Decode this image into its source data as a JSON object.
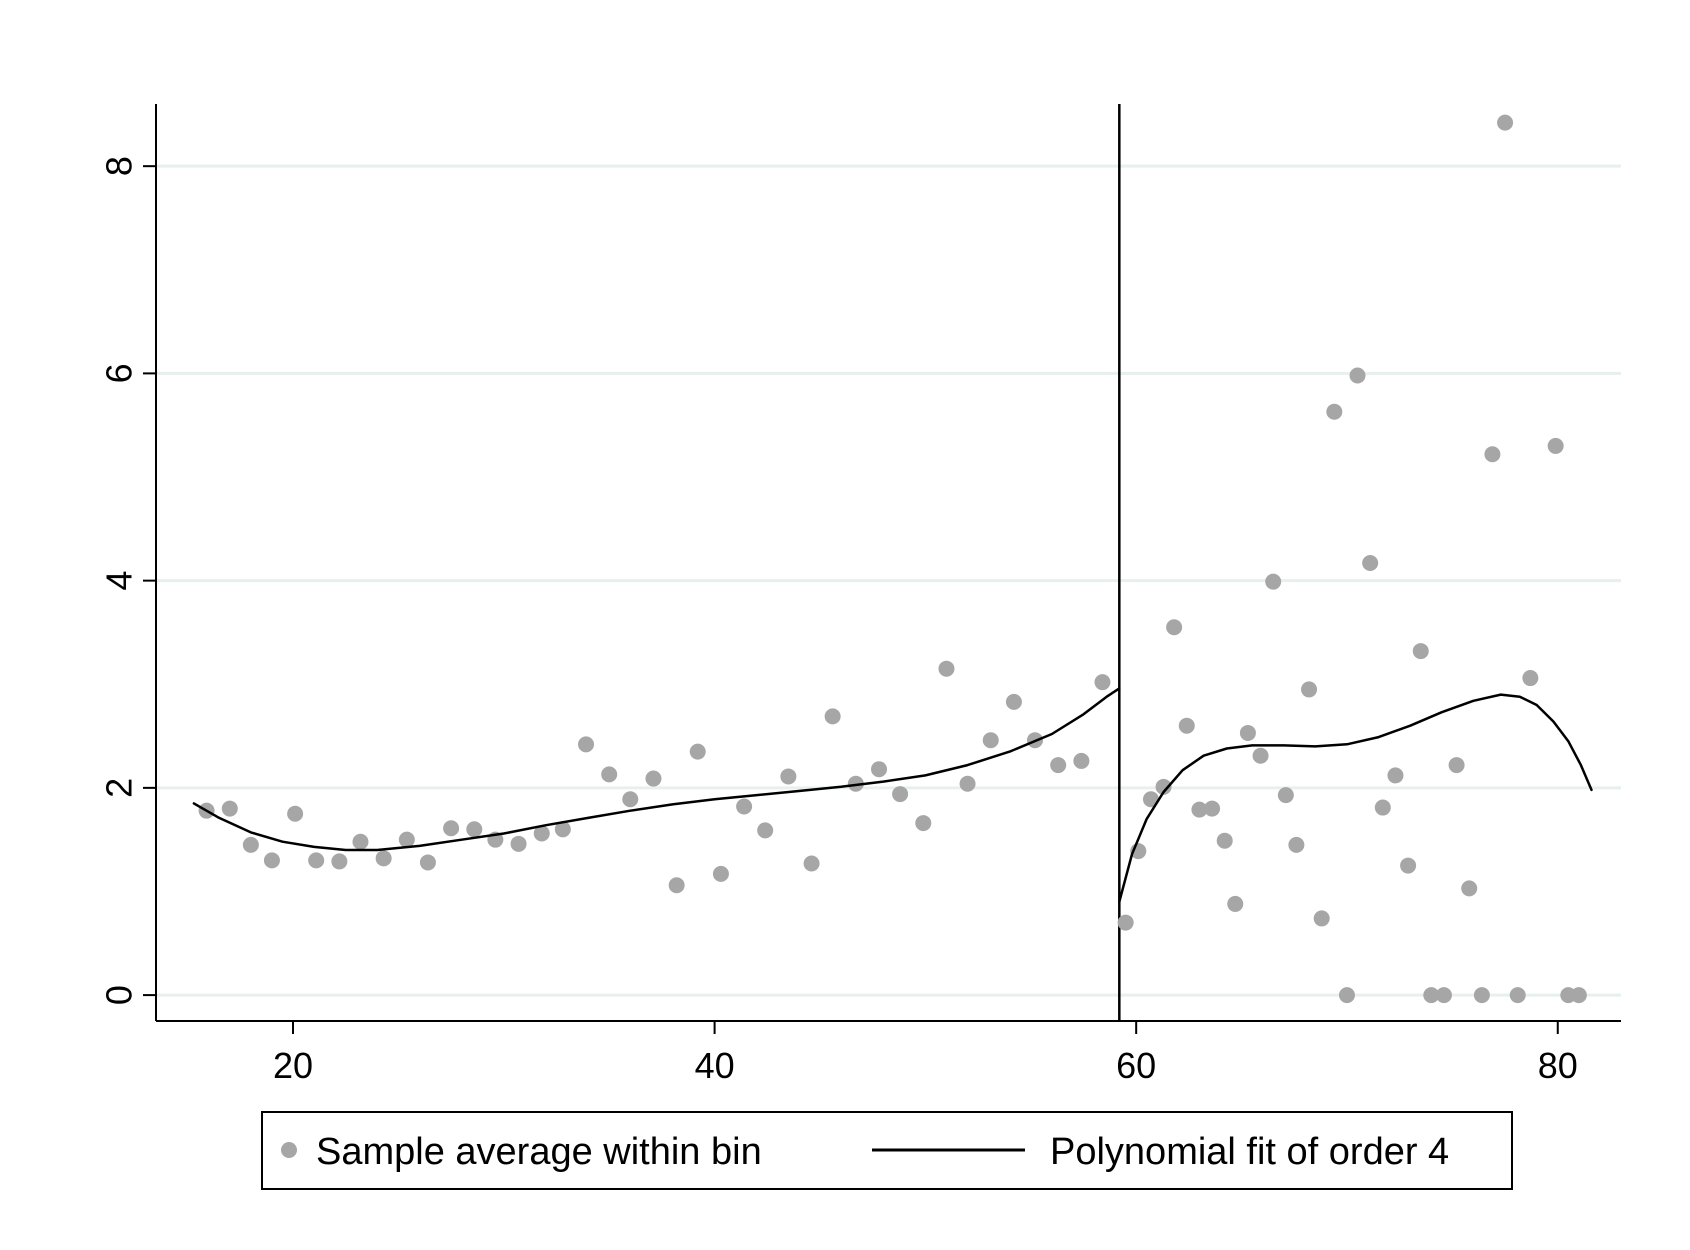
{
  "chart_data": {
    "type": "scatter",
    "title": "",
    "xlabel": "",
    "ylabel": "",
    "xlim": [
      13.5,
      83
    ],
    "ylim": [
      -0.25,
      8.6
    ],
    "x_ticks": [
      20,
      40,
      60,
      80
    ],
    "y_ticks": [
      0,
      2,
      4,
      6,
      8
    ],
    "x_tick_labels": [
      "20",
      "40",
      "60",
      "80"
    ],
    "y_tick_labels": [
      "0",
      "2",
      "4",
      "6",
      "8"
    ],
    "grid": true,
    "cutoff": 59.2,
    "legend_position": "bottom",
    "colors": {
      "points": "#a6a6a6",
      "fit": "#000000",
      "grid": "#e8efef",
      "axis": "#000000"
    },
    "series": [
      {
        "name": "Sample average within bin",
        "kind": "scatter",
        "points": [
          [
            15.9,
            1.78
          ],
          [
            17,
            1.8
          ],
          [
            18,
            1.45
          ],
          [
            19,
            1.3
          ],
          [
            20.1,
            1.75
          ],
          [
            21.1,
            1.3
          ],
          [
            22.2,
            1.29
          ],
          [
            23.2,
            1.48
          ],
          [
            24.3,
            1.32
          ],
          [
            25.4,
            1.5
          ],
          [
            26.4,
            1.28
          ],
          [
            27.5,
            1.61
          ],
          [
            28.6,
            1.6
          ],
          [
            29.6,
            1.5
          ],
          [
            30.7,
            1.46
          ],
          [
            31.8,
            1.56
          ],
          [
            32.8,
            1.6
          ],
          [
            33.9,
            2.42
          ],
          [
            35,
            2.13
          ],
          [
            36,
            1.89
          ],
          [
            37.1,
            2.09
          ],
          [
            38.2,
            1.06
          ],
          [
            39.2,
            2.35
          ],
          [
            40.3,
            1.17
          ],
          [
            41.4,
            1.82
          ],
          [
            42.4,
            1.59
          ],
          [
            43.5,
            2.11
          ],
          [
            44.6,
            1.27
          ],
          [
            45.6,
            2.69
          ],
          [
            46.7,
            2.04
          ],
          [
            47.8,
            2.18
          ],
          [
            48.8,
            1.94
          ],
          [
            49.9,
            1.66
          ],
          [
            51,
            3.15
          ],
          [
            52,
            2.04
          ],
          [
            53.1,
            2.46
          ],
          [
            54.2,
            2.83
          ],
          [
            55.2,
            2.46
          ],
          [
            56.3,
            2.22
          ],
          [
            57.4,
            2.26
          ],
          [
            58.4,
            3.02
          ],
          [
            59.5,
            0.7
          ],
          [
            60.1,
            1.39
          ],
          [
            60.7,
            1.89
          ],
          [
            61.3,
            2.01
          ],
          [
            61.8,
            3.55
          ],
          [
            62.4,
            2.6
          ],
          [
            63,
            1.79
          ],
          [
            63.6,
            1.8
          ],
          [
            64.2,
            1.49
          ],
          [
            64.7,
            0.88
          ],
          [
            65.3,
            2.53
          ],
          [
            65.9,
            2.31
          ],
          [
            66.5,
            3.99
          ],
          [
            67.1,
            1.93
          ],
          [
            67.6,
            1.45
          ],
          [
            68.2,
            2.95
          ],
          [
            68.8,
            0.74
          ],
          [
            69.4,
            5.63
          ],
          [
            70,
            0.0
          ],
          [
            70.5,
            5.98
          ],
          [
            71.1,
            4.17
          ],
          [
            71.7,
            1.81
          ],
          [
            72.3,
            2.12
          ],
          [
            72.9,
            1.25
          ],
          [
            73.5,
            3.32
          ],
          [
            74,
            0.0
          ],
          [
            74.6,
            0.0
          ],
          [
            75.2,
            2.22
          ],
          [
            75.8,
            1.03
          ],
          [
            76.4,
            0.0
          ],
          [
            76.9,
            5.22
          ],
          [
            77.5,
            8.42
          ],
          [
            78.1,
            0.0
          ],
          [
            78.7,
            3.06
          ],
          [
            79.9,
            5.3
          ],
          [
            80.5,
            0.0
          ],
          [
            81,
            0.0
          ]
        ]
      },
      {
        "name": "Polynomial fit of order 4",
        "kind": "line",
        "segments": [
          [
            [
              15.3,
              1.85
            ],
            [
              16.5,
              1.71
            ],
            [
              18,
              1.57
            ],
            [
              19.5,
              1.48
            ],
            [
              21,
              1.43
            ],
            [
              22.5,
              1.4
            ],
            [
              24,
              1.4
            ],
            [
              26,
              1.44
            ],
            [
              28,
              1.5
            ],
            [
              30,
              1.56
            ],
            [
              32,
              1.64
            ],
            [
              34,
              1.71
            ],
            [
              36,
              1.78
            ],
            [
              38,
              1.84
            ],
            [
              40,
              1.89
            ],
            [
              42,
              1.93
            ],
            [
              44,
              1.97
            ],
            [
              46,
              2.01
            ],
            [
              48,
              2.06
            ],
            [
              50,
              2.12
            ],
            [
              52,
              2.22
            ],
            [
              54,
              2.35
            ],
            [
              56,
              2.52
            ],
            [
              57.5,
              2.71
            ],
            [
              58.6,
              2.88
            ],
            [
              59.2,
              2.96
            ]
          ],
          [
            [
              59.2,
              0.9
            ],
            [
              59.8,
              1.36
            ],
            [
              60.5,
              1.7
            ],
            [
              61.3,
              1.96
            ],
            [
              62.2,
              2.17
            ],
            [
              63.2,
              2.31
            ],
            [
              64.3,
              2.38
            ],
            [
              65.5,
              2.41
            ],
            [
              67,
              2.41
            ],
            [
              68.5,
              2.4
            ],
            [
              70,
              2.42
            ],
            [
              71.5,
              2.49
            ],
            [
              73,
              2.6
            ],
            [
              74.5,
              2.73
            ],
            [
              76,
              2.84
            ],
            [
              77.3,
              2.9
            ],
            [
              78.2,
              2.88
            ],
            [
              79,
              2.8
            ],
            [
              79.8,
              2.64
            ],
            [
              80.5,
              2.45
            ],
            [
              81.1,
              2.22
            ],
            [
              81.6,
              1.98
            ]
          ]
        ]
      }
    ]
  }
}
